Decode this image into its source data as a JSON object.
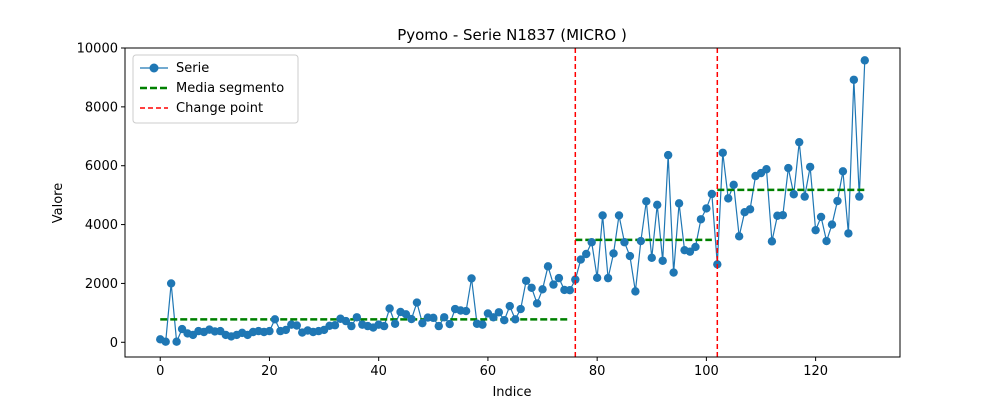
{
  "chart_data": {
    "type": "line",
    "title": "Pyomo - Serie N1837 (MICRO       )",
    "xlabel": "Indice",
    "ylabel": "Valore",
    "xlim": [
      -6.45,
      135.45
    ],
    "ylim": [
      -500,
      10000
    ],
    "xticks": [
      0,
      20,
      40,
      60,
      80,
      100,
      120
    ],
    "yticks": [
      0,
      2000,
      4000,
      6000,
      8000,
      10000
    ],
    "grid": false,
    "legend_position": "top-left",
    "series": [
      {
        "name": "Serie",
        "color": "#1f77b4",
        "marker": "circle",
        "y": [
          100,
          20,
          2000,
          20,
          450,
          300,
          250,
          380,
          350,
          430,
          370,
          380,
          250,
          200,
          250,
          320,
          250,
          350,
          380,
          350,
          380,
          780,
          380,
          420,
          600,
          570,
          330,
          400,
          350,
          380,
          420,
          560,
          580,
          800,
          720,
          550,
          850,
          600,
          550,
          500,
          600,
          550,
          1150,
          630,
          1030,
          950,
          790,
          1350,
          650,
          840,
          830,
          550,
          850,
          620,
          1130,
          1080,
          1060,
          2170,
          630,
          600,
          980,
          850,
          1020,
          750,
          1230,
          780,
          1130,
          2090,
          1850,
          1320,
          1800,
          2580,
          1960,
          2180,
          1780,
          1770,
          2130,
          2810,
          3000,
          3400,
          2190,
          4310,
          2180,
          3020,
          4310,
          3400,
          2930,
          1730,
          3440,
          4790,
          2870,
          4670,
          2770,
          6360,
          2370,
          4720,
          3130,
          3080,
          3240,
          4180,
          4550,
          5040,
          2650,
          6440,
          4890,
          5350,
          3600,
          4420,
          4520,
          5650,
          5750,
          5880,
          3430,
          4300,
          4320,
          5920,
          5030,
          6800,
          4950,
          5960,
          3810,
          4260,
          3440,
          4000,
          4800,
          5810,
          3700,
          8920,
          4950,
          9580
        ]
      }
    ],
    "segments": {
      "name": "Media segmento",
      "color": "#008000",
      "items": [
        {
          "x_start": 0,
          "x_end": 75,
          "mean": 780
        },
        {
          "x_start": 76,
          "x_end": 101,
          "mean": 3480
        },
        {
          "x_start": 102,
          "x_end": 129,
          "mean": 5180
        }
      ]
    },
    "change_points": {
      "name": "Change point",
      "color": "#ff0000",
      "x": [
        76,
        102
      ]
    }
  }
}
